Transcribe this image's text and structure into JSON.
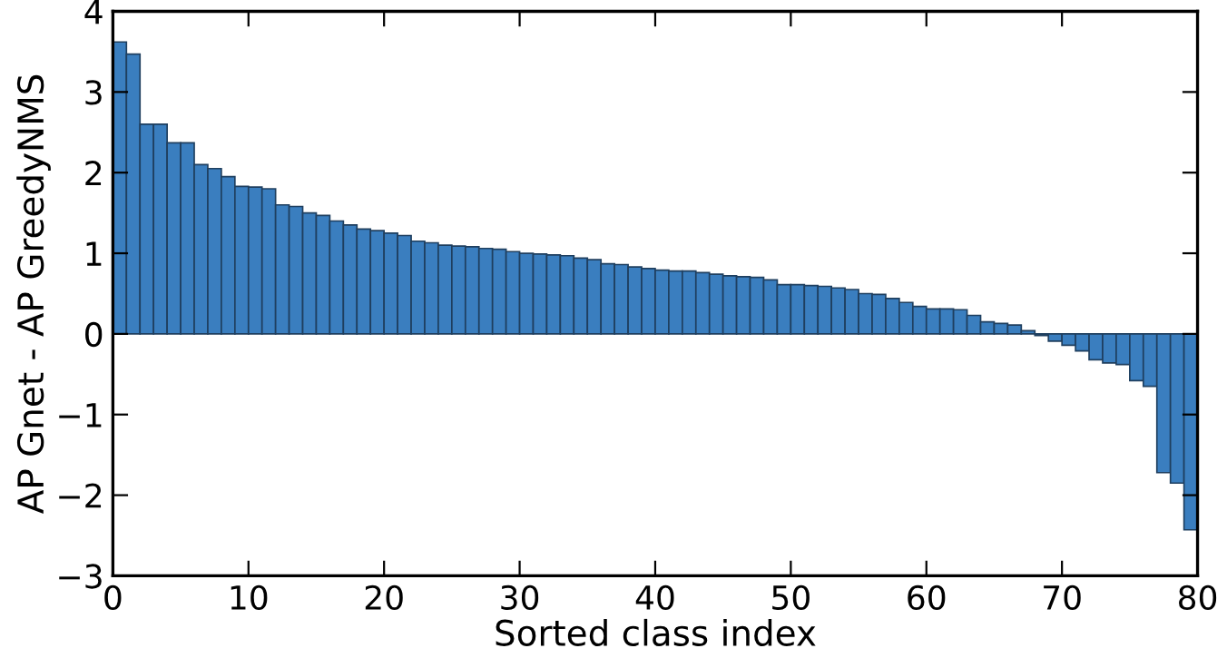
{
  "chart_data": {
    "type": "bar",
    "xlabel": "Sorted class index",
    "ylabel": "AP Gnet - AP GreedyNMS",
    "x": [
      0.5,
      1.5,
      2.5,
      3.5,
      4.5,
      5.5,
      6.5,
      7.5,
      8.5,
      9.5,
      10.5,
      11.5,
      12.5,
      13.5,
      14.5,
      15.5,
      16.5,
      17.5,
      18.5,
      19.5,
      20.5,
      21.5,
      22.5,
      23.5,
      24.5,
      25.5,
      26.5,
      27.5,
      28.5,
      29.5,
      30.5,
      31.5,
      32.5,
      33.5,
      34.5,
      35.5,
      36.5,
      37.5,
      38.5,
      39.5,
      40.5,
      41.5,
      42.5,
      43.5,
      44.5,
      45.5,
      46.5,
      47.5,
      48.5,
      49.5,
      50.5,
      51.5,
      52.5,
      53.5,
      54.5,
      55.5,
      56.5,
      57.5,
      58.5,
      59.5,
      60.5,
      61.5,
      62.5,
      63.5,
      64.5,
      65.5,
      66.5,
      67.5,
      68.5,
      69.5,
      70.5,
      71.5,
      72.5,
      73.5,
      74.5,
      75.5,
      76.5,
      77.5,
      78.5,
      79.5
    ],
    "series": [
      {
        "color": "#3a7ebf",
        "values": [
          3.62,
          3.47,
          2.6,
          2.6,
          2.37,
          2.37,
          2.1,
          2.05,
          1.95,
          1.83,
          1.82,
          1.8,
          1.6,
          1.58,
          1.5,
          1.47,
          1.4,
          1.35,
          1.3,
          1.28,
          1.25,
          1.22,
          1.15,
          1.13,
          1.1,
          1.09,
          1.08,
          1.06,
          1.05,
          1.02,
          1.0,
          0.99,
          0.98,
          0.97,
          0.94,
          0.92,
          0.87,
          0.86,
          0.83,
          0.81,
          0.79,
          0.78,
          0.78,
          0.76,
          0.74,
          0.72,
          0.71,
          0.7,
          0.67,
          0.61,
          0.61,
          0.6,
          0.59,
          0.57,
          0.55,
          0.5,
          0.49,
          0.44,
          0.39,
          0.34,
          0.31,
          0.31,
          0.3,
          0.23,
          0.15,
          0.13,
          0.11,
          0.04,
          -0.02,
          -0.09,
          -0.14,
          -0.21,
          -0.32,
          -0.36,
          -0.38,
          -0.58,
          -0.65,
          -1.72,
          -1.85,
          -2.43
        ]
      }
    ],
    "xlim": [
      0,
      80
    ],
    "xticks": [
      0,
      10,
      20,
      30,
      40,
      50,
      60,
      70,
      80
    ],
    "ylim": [
      -3,
      4
    ],
    "yticks": [
      -3,
      -2,
      -1,
      0,
      1,
      2,
      3,
      4
    ],
    "grid": false,
    "legend": false
  }
}
